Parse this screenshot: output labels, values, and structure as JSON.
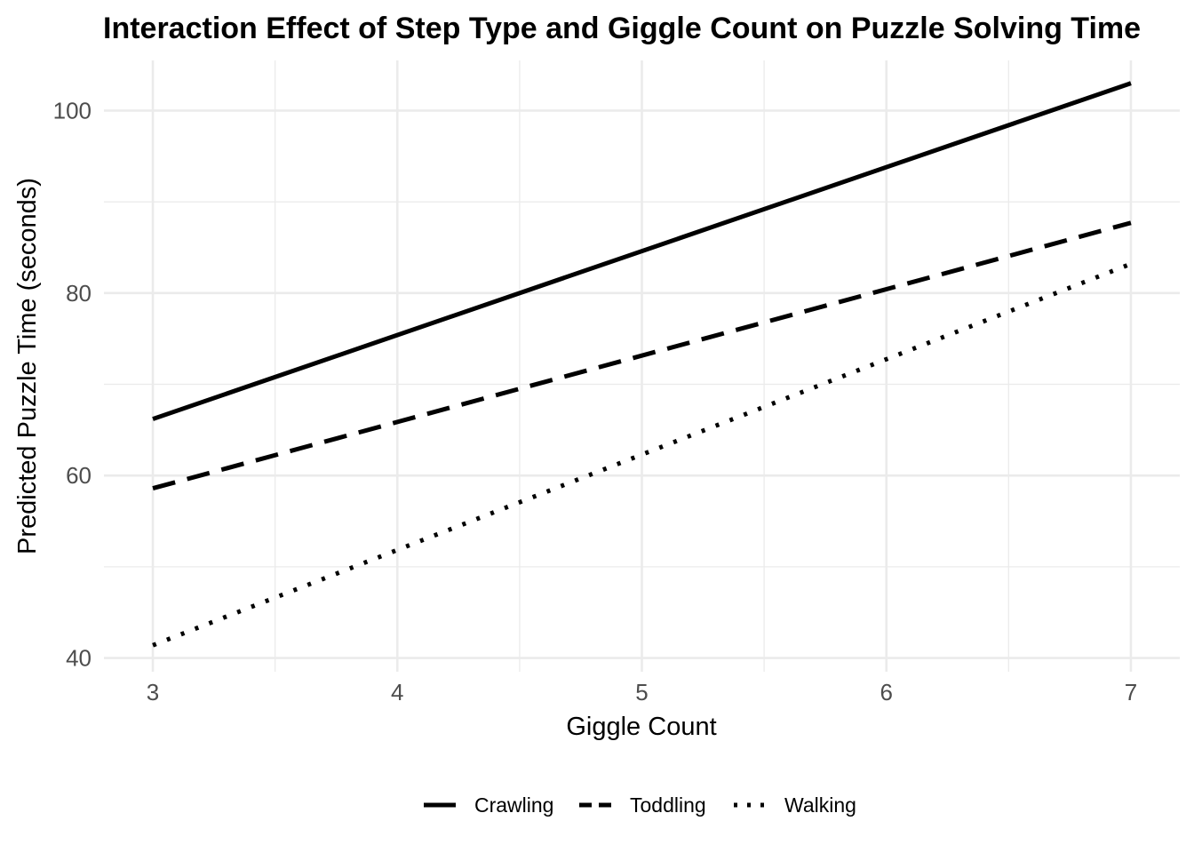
{
  "chart_data": {
    "type": "line",
    "title": "Interaction Effect of Step Type and Giggle Count on Puzzle Solving Time",
    "xlabel": "Giggle Count",
    "ylabel": "Predicted Puzzle Time (seconds)",
    "xlim": [
      2.8,
      7.2
    ],
    "ylim": [
      38.5,
      105.5
    ],
    "x_ticks": [
      3,
      4,
      5,
      6,
      7
    ],
    "y_ticks": [
      40,
      60,
      80,
      100
    ],
    "grid": true,
    "legend_position": "bottom",
    "series": [
      {
        "name": "Crawling",
        "linetype": "solid",
        "x": [
          3,
          7
        ],
        "values": [
          66.2,
          103.0
        ]
      },
      {
        "name": "Toddling",
        "linetype": "dashed",
        "x": [
          3,
          7
        ],
        "values": [
          58.6,
          87.7
        ]
      },
      {
        "name": "Walking",
        "linetype": "dotted",
        "x": [
          3,
          7
        ],
        "values": [
          41.4,
          83.2
        ]
      }
    ],
    "colors": {
      "line": "#000000",
      "grid": "#ebebeb",
      "tick_text": "#4d4d4d"
    }
  }
}
